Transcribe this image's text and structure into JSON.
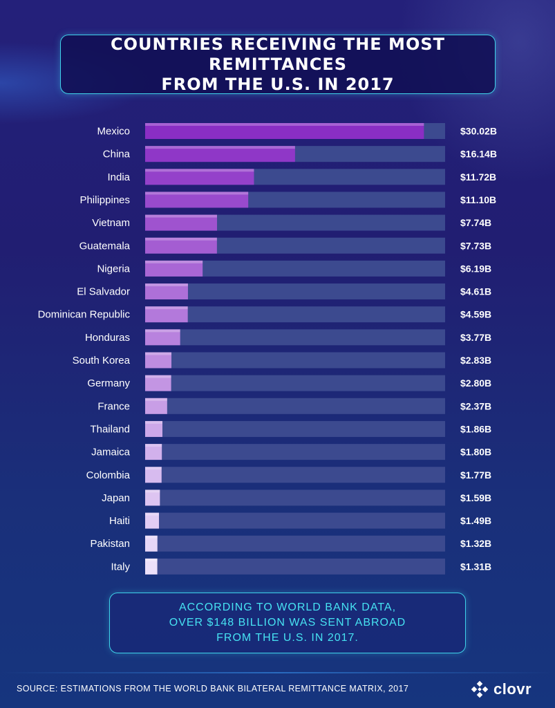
{
  "title": "COUNTRIES RECEIVING THE MOST REMITTANCES\nFROM THE U.S. IN 2017",
  "note": "ACCORDING TO WORLD BANK DATA,\nOVER $148 BILLION WAS SENT ABROAD\nFROM THE U.S. IN 2017.",
  "source": "SOURCE: ESTIMATIONS FROM THE WORLD BANK BILATERAL REMITTANCE MATRIX, 2017",
  "logo": {
    "text": "clovr",
    "icon": "clovr-logo-icon"
  },
  "colors": {
    "track": "#3c4a8f",
    "bar_start": "#8a2ec4",
    "bar_end": "#ece0fa",
    "accent": "#3fd3ea"
  },
  "chart_data": {
    "type": "bar",
    "orientation": "horizontal",
    "categories": [
      "Mexico",
      "China",
      "India",
      "Philippines",
      "Vietnam",
      "Guatemala",
      "Nigeria",
      "El Salvador",
      "Dominican Republic",
      "Honduras",
      "South Korea",
      "Germany",
      "France",
      "Thailand",
      "Jamaica",
      "Colombia",
      "Japan",
      "Haiti",
      "Pakistan",
      "Italy"
    ],
    "values": [
      30.02,
      16.14,
      11.72,
      11.1,
      7.74,
      7.73,
      6.19,
      4.61,
      4.59,
      3.77,
      2.83,
      2.8,
      2.37,
      1.86,
      1.8,
      1.77,
      1.59,
      1.49,
      1.32,
      1.31
    ],
    "value_labels": [
      "$30.02B",
      "$16.14B",
      "$11.72B",
      "$11.10B",
      "$7.74B",
      "$7.73B",
      "$6.19B",
      "$4.61B",
      "$4.59B",
      "$3.77B",
      "$2.83B",
      "$2.80B",
      "$2.37B",
      "$1.86B",
      "$1.80B",
      "$1.77B",
      "$1.59B",
      "$1.49B",
      "$1.32B",
      "$1.31B"
    ],
    "unit": "billion USD",
    "xlim": [
      0,
      32.3
    ]
  }
}
